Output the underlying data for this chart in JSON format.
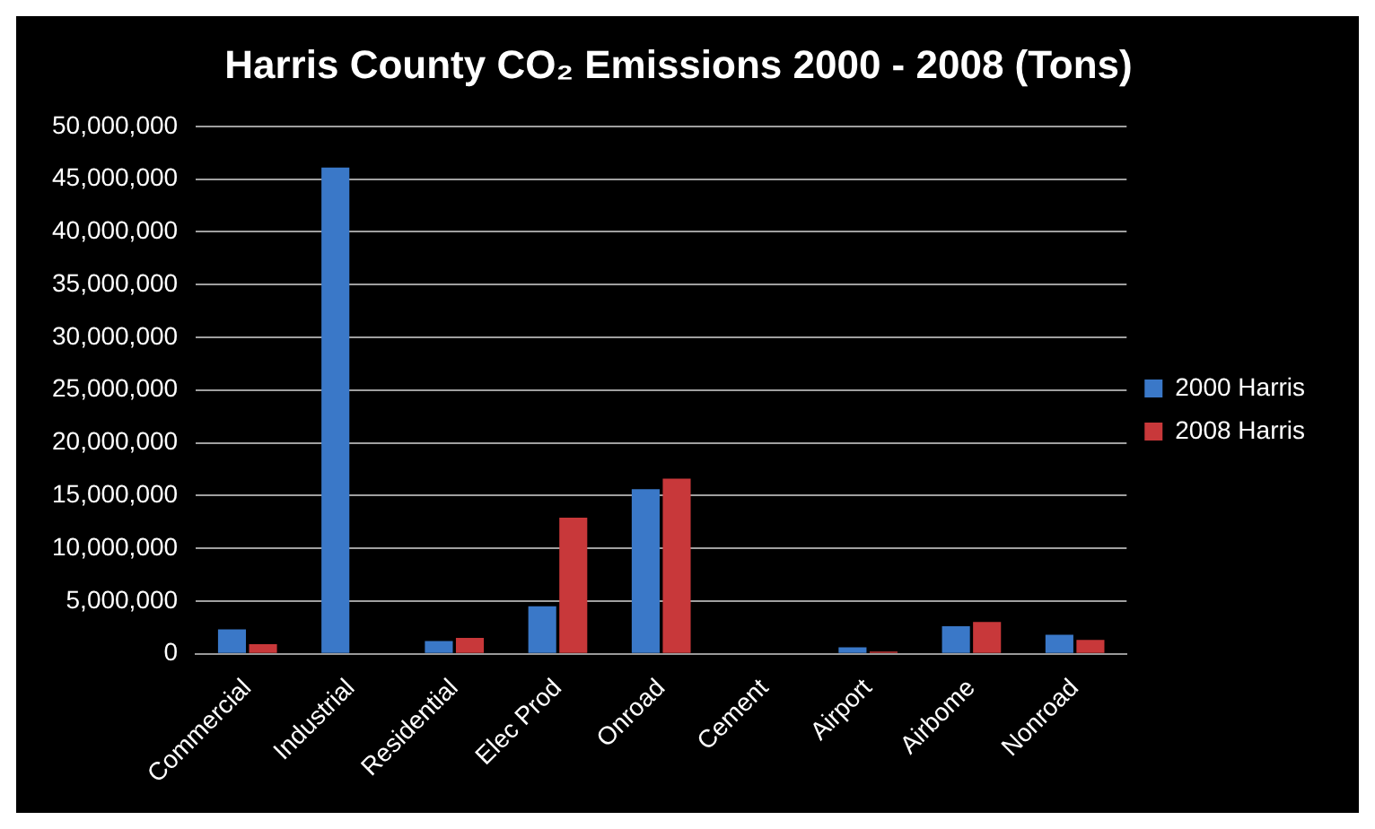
{
  "chart_data": {
    "type": "bar",
    "title": "Harris County CO₂ Emissions 2000 - 2008 (Tons)",
    "categories": [
      "Commercial",
      "Industrial",
      "Residential",
      "Elec Prod",
      "Onroad",
      "Cement",
      "Airport",
      "Airbome",
      "Nonroad"
    ],
    "series": [
      {
        "name": "2000 Harris",
        "color": "#3a78c8",
        "values": [
          2300000,
          46100000,
          1200000,
          4500000,
          15600000,
          0,
          600000,
          2600000,
          1800000
        ]
      },
      {
        "name": "2008 Harris",
        "color": "#c8383a",
        "values": [
          900000,
          0,
          1500000,
          12900000,
          16600000,
          0,
          200000,
          3000000,
          1300000
        ]
      }
    ],
    "ylim": [
      0,
      50000000
    ],
    "yticks": [
      0,
      {
        "value": 5000000,
        "label": "5,000,000"
      },
      {
        "value": 10000000,
        "label": "10,000,000"
      },
      {
        "value": 15000000,
        "label": "15,000,000"
      },
      {
        "value": 20000000,
        "label": "20,000,000"
      },
      {
        "value": 25000000,
        "label": "25,000,000"
      },
      {
        "value": 30000000,
        "label": "30,000,000"
      },
      {
        "value": 35000000,
        "label": "35,000,000"
      },
      {
        "value": 40000000,
        "label": "40,000,000"
      },
      {
        "value": 45000000,
        "label": "45,000,000"
      },
      {
        "value": 50000000,
        "label": "50,000,000"
      }
    ],
    "grid": "y",
    "legend": "right"
  }
}
